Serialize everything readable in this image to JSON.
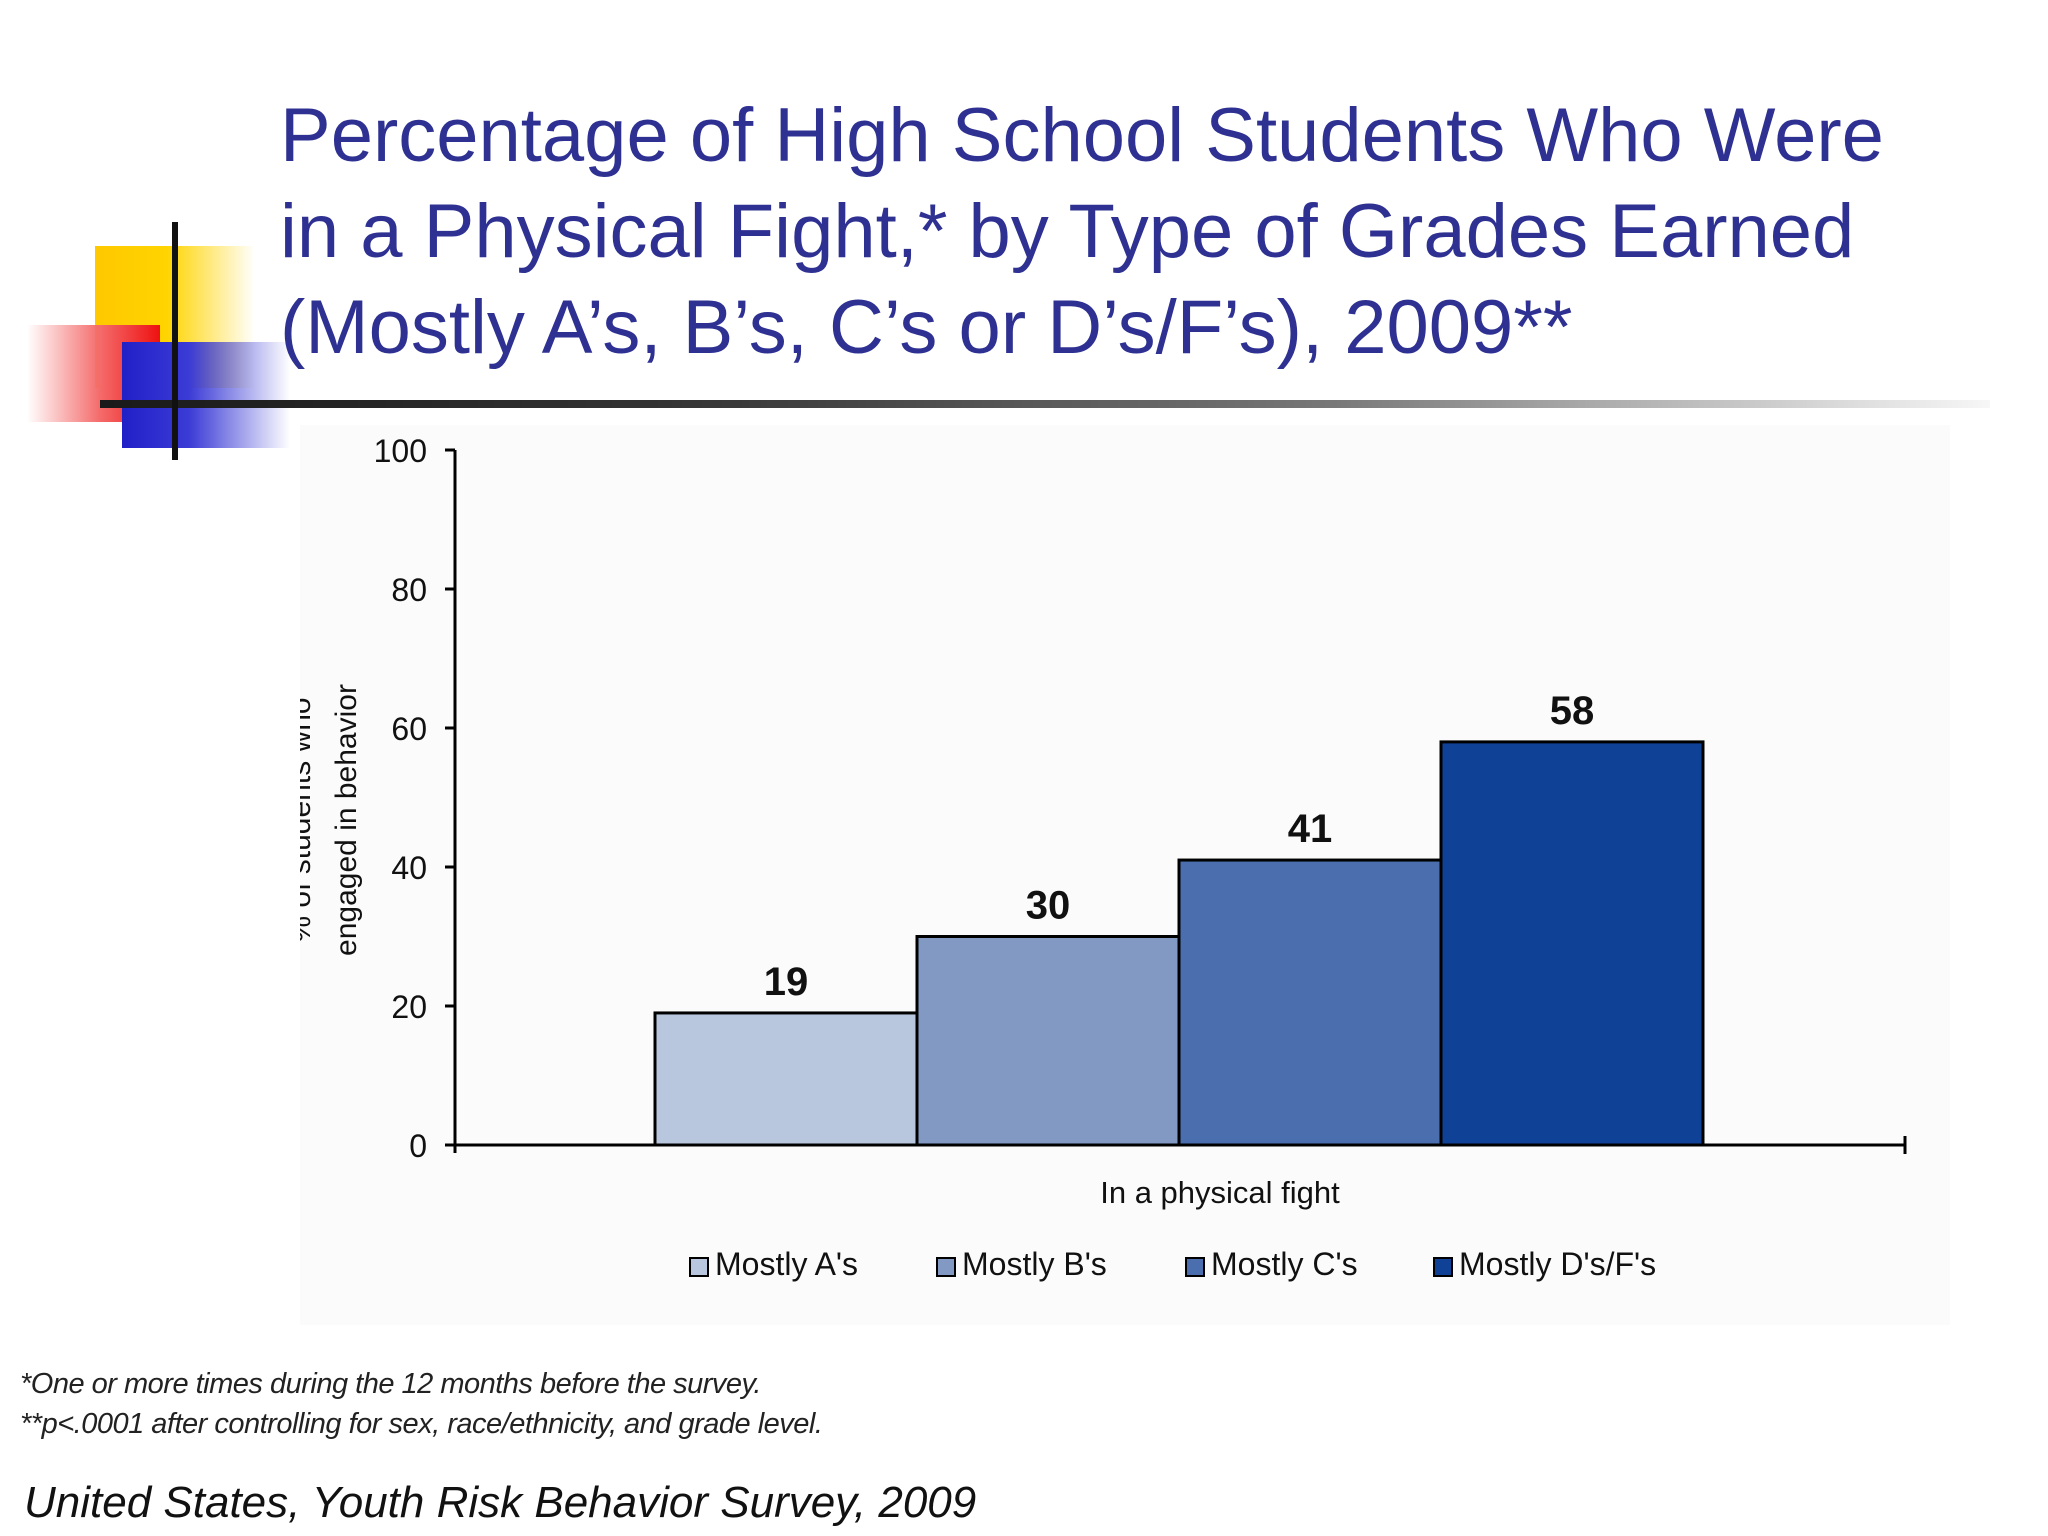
{
  "slide": {
    "title_lines": [
      "Percentage of High School Students Who Were",
      "in a Physical Fight,* by Type of Grades Earned",
      "(Mostly A’s, B’s, C’s or D’s/F’s), 2009**"
    ],
    "footnotes": [
      "*One or more times during the 12 months before the survey.",
      "**p<.0001 after controlling for sex, race/ethnicity, and grade level."
    ],
    "source": "United States, Youth Risk Behavior Survey, 2009"
  },
  "colors": {
    "title": "#2e3192",
    "axis": "#000000"
  },
  "chart_data": {
    "type": "bar",
    "categories": [
      "In a physical fight"
    ],
    "series": [
      {
        "name": "Mostly A's",
        "values": [
          19
        ],
        "color": "#b8c7de"
      },
      {
        "name": "Mostly B's",
        "values": [
          30
        ],
        "color": "#8199c3"
      },
      {
        "name": "Mostly C's",
        "values": [
          41
        ],
        "color": "#4a6eae"
      },
      {
        "name": "Mostly D's/F's",
        "values": [
          58
        ],
        "color": "#0f4196"
      }
    ],
    "ylabel": "% of students who engaged in behavior",
    "ylabel_lines": [
      "% of students who",
      "engaged in behavior"
    ],
    "yticks": [
      0,
      20,
      40,
      60,
      80,
      100
    ],
    "ylim": [
      0,
      100
    ],
    "data_labels": true,
    "grid": false,
    "legend": "bottom"
  }
}
